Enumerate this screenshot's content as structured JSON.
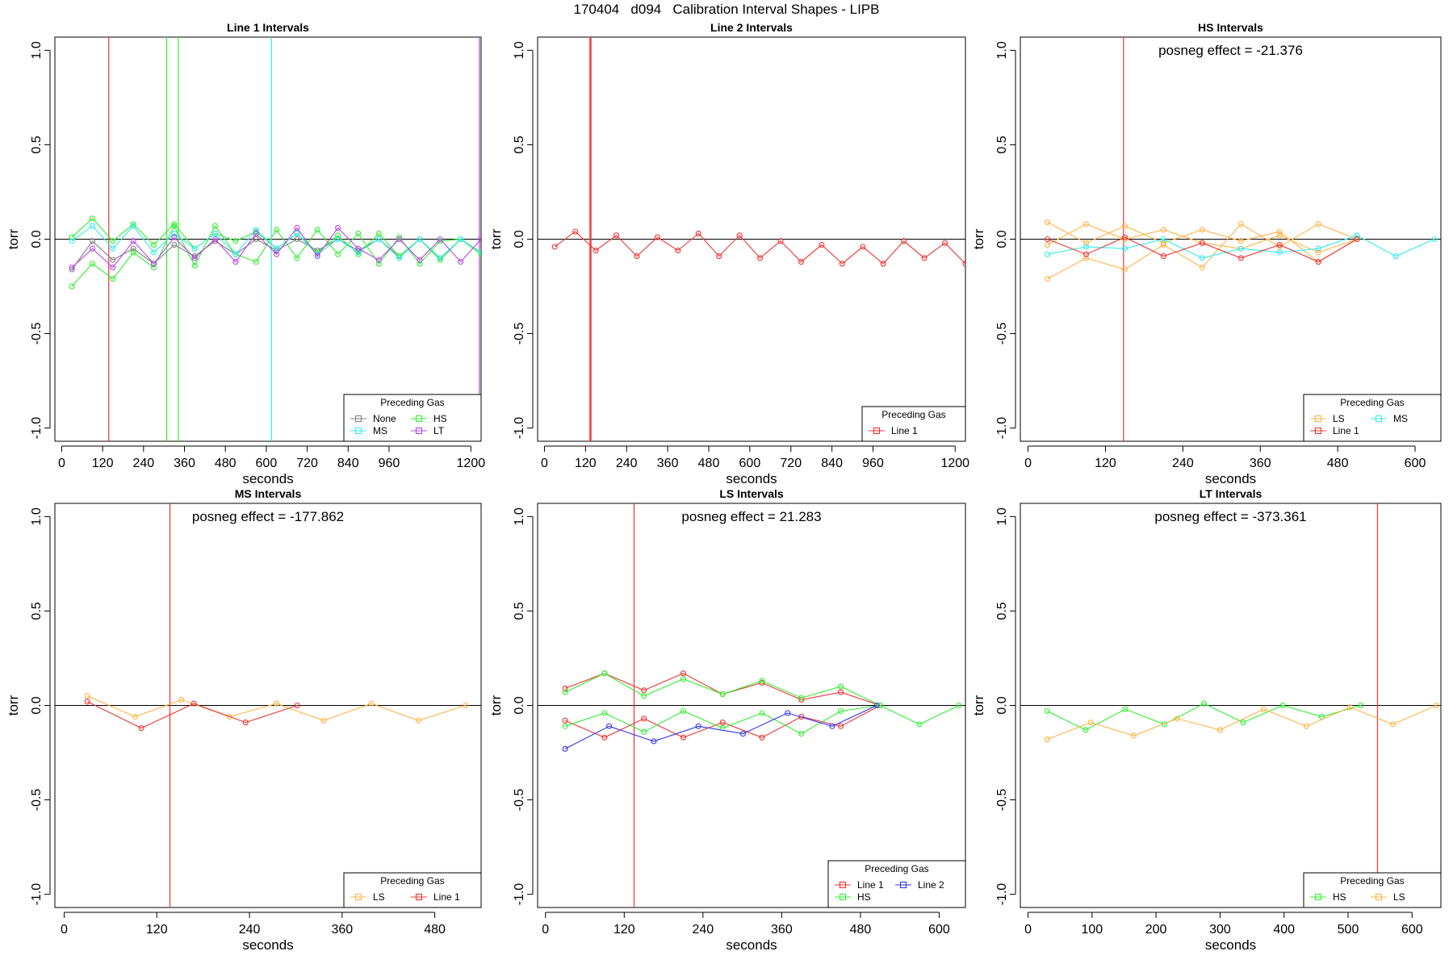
{
  "page": {
    "title": "170404   d094   Calibration Interval Shapes - LIPB"
  },
  "colors": {
    "None": "#808080",
    "HS": "#33ee33",
    "MS": "#33ecec",
    "LT": "#b845e6",
    "LS": "#ffb347",
    "Line 1": "#ee3333",
    "Line 2": "#3333ee",
    "refline": "#b22222"
  },
  "chart_data": [
    {
      "type": "line",
      "title": "Line 1 Intervals",
      "xlabel": "seconds",
      "ylabel": "torr",
      "xlim": [
        -20,
        1230
      ],
      "ylim": [
        -1.07,
        1.07
      ],
      "xticks": [
        0,
        120,
        240,
        360,
        480,
        600,
        720,
        840,
        960,
        1200
      ],
      "yticks": [
        -1.0,
        -0.5,
        0.0,
        0.5,
        1.0
      ],
      "annotation": "",
      "legend": {
        "title": "Preceding Gas",
        "position": "bottom-right",
        "entries": [
          "None",
          "HS",
          "MS",
          "LT"
        ],
        "columns": 2
      },
      "vlines": [
        {
          "x": 138,
          "color": "Line 1"
        },
        {
          "x": 308,
          "color": "HS"
        },
        {
          "x": 342,
          "color": "HS"
        },
        {
          "x": 615,
          "color": "MS"
        },
        {
          "x": 1225,
          "color": "LT"
        }
      ],
      "hline": 0,
      "series": [
        {
          "name": "None",
          "x": [
            30,
            90,
            150,
            210,
            270,
            330,
            390,
            450,
            510,
            570,
            630,
            690,
            750,
            810,
            870,
            930,
            990,
            1050,
            1110,
            1170,
            1230
          ],
          "y": [
            -0.16,
            -0.01,
            -0.11,
            -0.05,
            -0.13,
            -0.03,
            -0.09,
            -0.01,
            -0.08,
            0.0,
            -0.06,
            0.0,
            -0.06,
            0.0,
            -0.06,
            0.0,
            -0.09,
            0.0,
            -0.1,
            0.0,
            -0.07
          ]
        },
        {
          "name": "HS",
          "x": [
            30,
            90,
            150,
            210,
            270,
            330,
            390,
            450,
            510,
            570,
            630,
            690,
            750,
            810,
            870,
            930,
            990,
            1050,
            1110,
            1170,
            1230
          ],
          "y": [
            -0.25,
            -0.13,
            -0.21,
            -0.07,
            -0.15,
            0.07,
            -0.14,
            0.07,
            -0.08,
            -0.12,
            0.05,
            -0.1,
            0.05,
            -0.08,
            0.03,
            -0.13,
            0.01,
            -0.13,
            -0.01,
            0.0,
            -0.07
          ]
        },
        {
          "name": "HS",
          "x": [
            30,
            90,
            150,
            210,
            270,
            330,
            390,
            450,
            510,
            570,
            630,
            690,
            750,
            810,
            870,
            930,
            990,
            1050,
            1110,
            1170,
            1230
          ],
          "y": [
            0.01,
            0.11,
            -0.01,
            0.08,
            -0.03,
            0.08,
            -0.05,
            0.03,
            -0.01,
            0.04,
            -0.05,
            0.03,
            -0.07,
            0.02,
            -0.08,
            0.03,
            -0.09,
            0.0,
            -0.11,
            0.0,
            -0.08
          ]
        },
        {
          "name": "MS",
          "x": [
            30,
            90,
            150,
            210,
            270,
            330,
            390,
            450,
            510,
            570,
            630,
            690,
            750,
            810,
            870,
            930,
            990,
            1050,
            1110,
            1170,
            1230
          ],
          "y": [
            -0.01,
            0.07,
            -0.05,
            0.07,
            -0.07,
            0.03,
            -0.05,
            0.03,
            -0.08,
            0.05,
            -0.05,
            0.03,
            -0.08,
            0.0,
            -0.07,
            0.0,
            -0.1,
            0.0,
            -0.1,
            0.0,
            -0.07
          ]
        },
        {
          "name": "LT",
          "x": [
            30,
            90,
            150,
            210,
            270,
            330,
            390,
            450,
            510,
            570,
            630,
            690,
            750,
            810,
            870,
            930,
            990,
            1050,
            1110,
            1170,
            1230
          ],
          "y": [
            -0.15,
            -0.05,
            -0.15,
            -0.01,
            -0.13,
            0.01,
            -0.1,
            0.0,
            -0.12,
            0.03,
            -0.08,
            0.06,
            -0.09,
            0.06,
            -0.05,
            -0.11,
            0.0,
            -0.11,
            0.0,
            -0.12,
            0.0
          ]
        }
      ]
    },
    {
      "type": "line",
      "title": "Line 2 Intervals",
      "xlabel": "seconds",
      "ylabel": "torr",
      "xlim": [
        -20,
        1230
      ],
      "ylim": [
        -1.07,
        1.07
      ],
      "xticks": [
        0,
        120,
        240,
        360,
        480,
        600,
        720,
        840,
        960,
        1200
      ],
      "yticks": [
        -1.0,
        -0.5,
        0.0,
        0.5,
        1.0
      ],
      "annotation": "",
      "legend": {
        "title": "Preceding Gas",
        "position": "bottom-right",
        "entries": [
          "Line 1"
        ],
        "columns": 1
      },
      "vlines": [
        {
          "x": 133,
          "color": "Line 1"
        },
        {
          "x": 136,
          "color": "Line 1"
        }
      ],
      "hline": 0,
      "series": [
        {
          "name": "Line 1",
          "x": [
            30,
            90,
            150,
            210,
            270,
            330,
            390,
            450,
            510,
            570,
            630,
            690,
            750,
            810,
            870,
            930,
            990,
            1050,
            1110,
            1170,
            1230
          ],
          "y": [
            -0.04,
            0.04,
            -0.06,
            0.02,
            -0.09,
            0.01,
            -0.06,
            0.03,
            -0.09,
            0.02,
            -0.1,
            -0.01,
            -0.12,
            -0.03,
            -0.13,
            -0.04,
            -0.13,
            -0.01,
            -0.1,
            -0.02,
            -0.13
          ]
        }
      ]
    },
    {
      "type": "line",
      "title": "HS Intervals",
      "xlabel": "seconds",
      "ylabel": "torr",
      "xlim": [
        -12,
        640
      ],
      "ylim": [
        -1.07,
        1.07
      ],
      "xticks": [
        0,
        120,
        240,
        360,
        480,
        600
      ],
      "yticks": [
        -1.0,
        -0.5,
        0.0,
        0.5,
        1.0
      ],
      "annotation": "posneg effect = -21.376",
      "legend": {
        "title": "Preceding Gas",
        "position": "bottom-right",
        "entries": [
          "LS",
          "MS",
          "Line 1"
        ],
        "columns": 2
      },
      "vlines": [
        {
          "x": 148,
          "color": "Line 1"
        }
      ],
      "hline": 0,
      "series": [
        {
          "name": "LS",
          "x": [
            30,
            90,
            150,
            210,
            270,
            330,
            390,
            450,
            510
          ],
          "y": [
            0.09,
            -0.02,
            0.07,
            -0.02,
            0.05,
            -0.01,
            0.04,
            -0.12,
            0.0
          ]
        },
        {
          "name": "LS",
          "x": [
            30,
            90,
            150,
            210,
            270,
            330,
            390,
            450,
            510
          ],
          "y": [
            -0.21,
            -0.1,
            -0.16,
            -0.03,
            -0.15,
            0.08,
            -0.04,
            0.08,
            0.0
          ]
        },
        {
          "name": "LS",
          "x": [
            30,
            90,
            150,
            210,
            270,
            330,
            390,
            450,
            510
          ],
          "y": [
            -0.03,
            0.08,
            0.0,
            0.05,
            -0.02,
            -0.05,
            0.02,
            -0.07,
            0.0
          ]
        },
        {
          "name": "MS",
          "x": [
            30,
            90,
            150,
            210,
            270,
            330,
            390,
            450,
            510,
            570,
            630
          ],
          "y": [
            -0.08,
            -0.04,
            -0.05,
            0.0,
            -0.1,
            -0.05,
            -0.07,
            -0.05,
            0.02,
            -0.09,
            0.0
          ]
        },
        {
          "name": "Line 1",
          "x": [
            30,
            90,
            150,
            210,
            270,
            330,
            390,
            450,
            510
          ],
          "y": [
            0.0,
            -0.08,
            0.01,
            -0.09,
            -0.02,
            -0.1,
            -0.03,
            -0.12,
            0.0
          ]
        }
      ]
    },
    {
      "type": "line",
      "title": "MS Intervals",
      "xlabel": "seconds",
      "ylabel": "torr",
      "xlim": [
        -12,
        540
      ],
      "ylim": [
        -1.07,
        1.07
      ],
      "xticks": [
        0,
        120,
        240,
        360,
        480
      ],
      "yticks": [
        -1.0,
        -0.5,
        0.0,
        0.5,
        1.0
      ],
      "annotation": "posneg effect = -177.862",
      "legend": {
        "title": "Preceding Gas",
        "position": "bottom-right",
        "entries": [
          "LS",
          "Line 1"
        ],
        "columns": 2
      },
      "vlines": [
        {
          "x": 137,
          "color": "Line 1"
        }
      ],
      "hline": 0,
      "series": [
        {
          "name": "LS",
          "x": [
            30,
            92,
            152,
            214,
            275,
            336,
            398,
            459,
            520
          ],
          "y": [
            0.05,
            -0.06,
            0.03,
            -0.06,
            0.01,
            -0.08,
            0.01,
            -0.08,
            0.0
          ]
        },
        {
          "name": "Line 1",
          "x": [
            30,
            100,
            168,
            235,
            302
          ],
          "y": [
            0.02,
            -0.12,
            0.01,
            -0.09,
            0.0
          ]
        }
      ]
    },
    {
      "type": "line",
      "title": "LS Intervals",
      "xlabel": "seconds",
      "ylabel": "torr",
      "xlim": [
        -12,
        640
      ],
      "ylim": [
        -1.07,
        1.07
      ],
      "xticks": [
        0,
        120,
        240,
        360,
        480,
        600
      ],
      "yticks": [
        -1.0,
        -0.5,
        0.0,
        0.5,
        1.0
      ],
      "annotation": "posneg effect = 21.283",
      "legend": {
        "title": "Preceding Gas",
        "position": "bottom-right",
        "entries": [
          "Line 1",
          "Line 2",
          "HS"
        ],
        "columns": 2
      },
      "vlines": [
        {
          "x": 135,
          "color": "Line 1"
        }
      ],
      "hline": 0,
      "series": [
        {
          "name": "Line 1",
          "x": [
            30,
            90,
            150,
            210,
            270,
            330,
            390,
            450,
            510
          ],
          "y": [
            0.09,
            0.17,
            0.08,
            0.17,
            0.06,
            0.12,
            0.03,
            0.07,
            0.0
          ]
        },
        {
          "name": "Line 1",
          "x": [
            30,
            90,
            150,
            210,
            270,
            330,
            390,
            450,
            510
          ],
          "y": [
            -0.08,
            -0.17,
            -0.07,
            -0.17,
            -0.09,
            -0.17,
            -0.06,
            -0.11,
            0.0
          ]
        },
        {
          "name": "HS",
          "x": [
            30,
            90,
            150,
            210,
            270,
            330,
            390,
            450,
            510
          ],
          "y": [
            0.07,
            0.17,
            0.05,
            0.14,
            0.06,
            0.13,
            0.04,
            0.1,
            0.0
          ]
        },
        {
          "name": "HS",
          "x": [
            30,
            90,
            150,
            210,
            270,
            330,
            390,
            450,
            510,
            570,
            630
          ],
          "y": [
            -0.11,
            -0.04,
            -0.14,
            -0.03,
            -0.12,
            -0.04,
            -0.15,
            -0.03,
            0.0,
            -0.1,
            0.0
          ]
        },
        {
          "name": "Line 2",
          "x": [
            30,
            97,
            165,
            233,
            301,
            369,
            437,
            505
          ],
          "y": [
            -0.23,
            -0.11,
            -0.19,
            -0.11,
            -0.15,
            -0.04,
            -0.11,
            0.0
          ]
        }
      ]
    },
    {
      "type": "line",
      "title": "LT Intervals",
      "xlabel": "seconds",
      "ylabel": "torr",
      "xlim": [
        -12,
        645
      ],
      "ylim": [
        -1.07,
        1.07
      ],
      "xticks": [
        0,
        100,
        200,
        300,
        400,
        500,
        600
      ],
      "yticks": [
        -1.0,
        -0.5,
        0.0,
        0.5,
        1.0
      ],
      "annotation": "posneg effect = -373.361",
      "legend": {
        "title": "Preceding Gas",
        "position": "bottom-right",
        "entries": [
          "HS",
          "LS"
        ],
        "columns": 2
      },
      "vlines": [
        {
          "x": 546,
          "color": "Line 1"
        }
      ],
      "hline": 0,
      "series": [
        {
          "name": "HS",
          "x": [
            30,
            90,
            152,
            213,
            275,
            336,
            398,
            459,
            520
          ],
          "y": [
            -0.03,
            -0.13,
            -0.02,
            -0.1,
            0.01,
            -0.09,
            0.0,
            -0.06,
            0.0
          ]
        },
        {
          "name": "LS",
          "x": [
            30,
            98,
            165,
            233,
            300,
            368,
            435,
            503,
            570,
            638
          ],
          "y": [
            -0.18,
            -0.09,
            -0.16,
            -0.07,
            -0.13,
            -0.02,
            -0.11,
            -0.01,
            -0.1,
            0.0
          ]
        }
      ]
    }
  ]
}
